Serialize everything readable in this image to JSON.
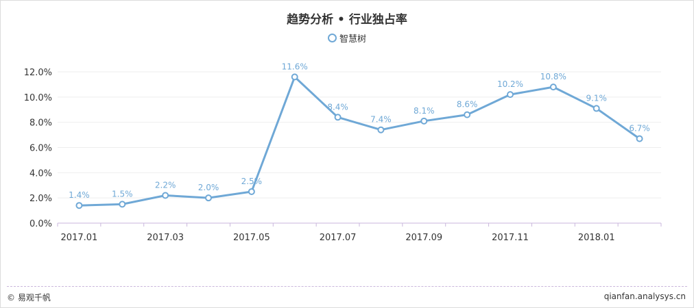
{
  "chart_data": {
    "type": "line",
    "title": "趋势分析 • 行业独占率",
    "x": [
      "2017.01",
      "2017.02",
      "2017.03",
      "2017.04",
      "2017.05",
      "2017.06",
      "2017.07",
      "2017.08",
      "2017.09",
      "2017.10",
      "2017.11",
      "2017.12",
      "2018.01",
      "2018.02"
    ],
    "x_tick_labels": [
      "2017.01",
      "2017.03",
      "2017.05",
      "2017.07",
      "2017.09",
      "2017.11",
      "2018.01"
    ],
    "series": [
      {
        "name": "智慧树",
        "values": [
          1.4,
          1.5,
          2.2,
          2.0,
          2.5,
          11.6,
          8.4,
          7.4,
          8.1,
          8.6,
          10.2,
          10.8,
          9.1,
          6.7
        ],
        "labels": [
          "1.4%",
          "1.5%",
          "2.2%",
          "2.0%",
          "2.5%",
          "11.6%",
          "8.4%",
          "7.4%",
          "8.1%",
          "8.6%",
          "10.2%",
          "10.8%",
          "9.1%",
          "6.7%"
        ]
      }
    ],
    "y_ticks": [
      "0.0%",
      "2.0%",
      "4.0%",
      "6.0%",
      "8.0%",
      "10.0%",
      "12.0%"
    ],
    "ylim": [
      0,
      12
    ],
    "xlabel": "",
    "ylabel": "",
    "grid": true,
    "legend_position": "top-center",
    "line_color": "#6fa8d6",
    "label_color": "#6fa8d6"
  },
  "footer": {
    "left": "© 易观千帆",
    "right": "qianfan.analysys.cn"
  }
}
